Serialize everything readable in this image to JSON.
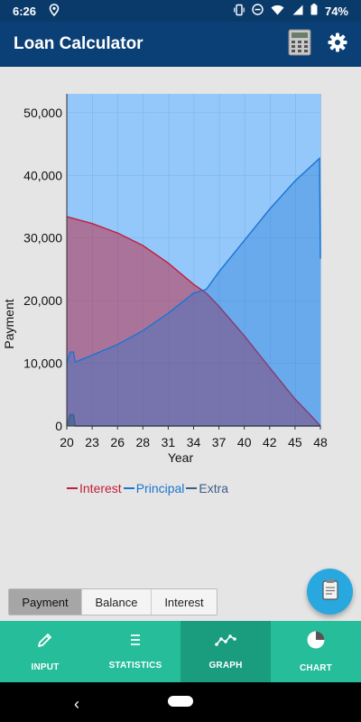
{
  "status_bar": {
    "time": "6:26",
    "battery": "74%",
    "icons": [
      "location-icon",
      "vibrate-icon",
      "dnd-icon",
      "wifi-icon",
      "signal-icon",
      "battery-icon"
    ]
  },
  "app_bar": {
    "title": "Loan Calculator",
    "actions": [
      "calculator-icon",
      "settings-icon"
    ]
  },
  "chart_data": {
    "type": "area",
    "xlabel": "Year",
    "ylabel": "Payment",
    "x_ticks": [
      "20",
      "23",
      "26",
      "28",
      "31",
      "34",
      "37",
      "40",
      "42",
      "45",
      "48"
    ],
    "y_ticks": [
      "0",
      "10,000",
      "20,000",
      "30,000",
      "40,000",
      "50,000"
    ],
    "ylim": [
      0,
      53000
    ],
    "xlim": [
      20,
      50
    ],
    "grid": true,
    "legend_placement": "bottom-left",
    "series": [
      {
        "name": "Interest",
        "color": "#c0203a",
        "x": [
          20,
          23,
          26,
          29,
          32,
          35,
          36.5,
          38,
          41,
          44,
          47,
          49,
          50
        ],
        "values": [
          33400,
          32300,
          30800,
          28800,
          26000,
          22600,
          21200,
          19100,
          14400,
          9300,
          4300,
          1500,
          0
        ]
      },
      {
        "name": "Principal",
        "color": "#1a74d1",
        "x": [
          20,
          20.4,
          20.8,
          21,
          23,
          26,
          29,
          32,
          35,
          36.5,
          38,
          41,
          44,
          47,
          49.9,
          50
        ],
        "values": [
          10000,
          11800,
          11800,
          10200,
          11300,
          13000,
          15200,
          18000,
          21200,
          21800,
          24600,
          29600,
          34600,
          39100,
          42700,
          26700
        ]
      },
      {
        "name": "Extra",
        "color": "#3b5f8a",
        "x": [
          20,
          20.4,
          20.8,
          21,
          50
        ],
        "values": [
          0,
          1800,
          1800,
          0,
          0
        ]
      }
    ]
  },
  "toggle": {
    "options": [
      "Payment",
      "Balance",
      "Interest"
    ],
    "selected": "Payment"
  },
  "fab": {
    "icon": "clipboard-icon"
  },
  "bottom_nav": [
    {
      "label": "INPUT",
      "icon": "pencil-icon",
      "active": false
    },
    {
      "label": "STATISTICS",
      "icon": "list-icon",
      "active": false
    },
    {
      "label": "GRAPH",
      "icon": "line-graph-icon",
      "active": true
    },
    {
      "label": "CHART",
      "icon": "pie-chart-icon",
      "active": false
    }
  ]
}
